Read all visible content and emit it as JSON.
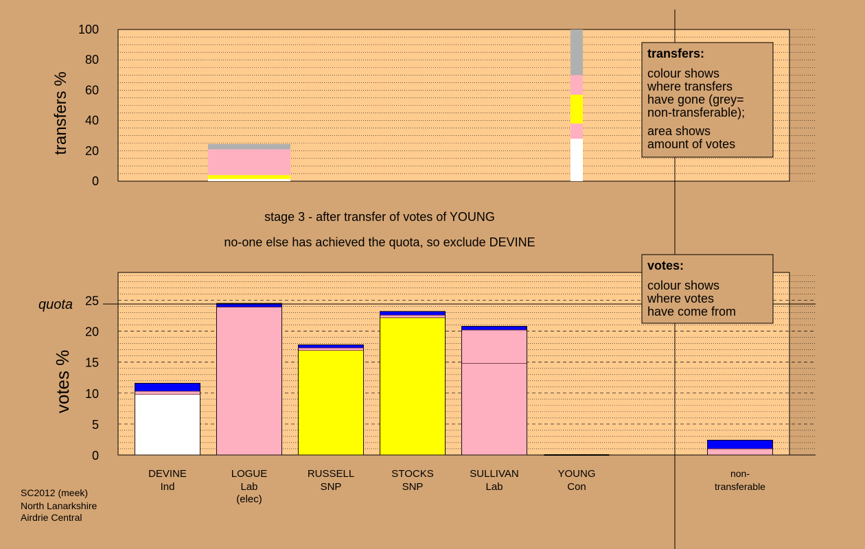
{
  "colors": {
    "background": "#d4a574",
    "plot_bg": "#ffcc90",
    "box_bg": "#d4a574",
    "white": "#ffffff",
    "pink": "#ffb0c0",
    "yellow": "#ffff00",
    "blue": "#0000ff",
    "grey": "#b0b0b0",
    "dark": "#000000"
  },
  "stage_text": {
    "line1": "stage 3 - after transfer of votes of YOUNG",
    "line2": "no-one else has achieved the quota, so exclude DEVINE"
  },
  "footer": {
    "line1": "SC2012 (meek)",
    "line2": "North Lanarkshire",
    "line3": "Airdrie Central"
  },
  "transfers_box": {
    "title": "transfers:",
    "body1": [
      "colour shows",
      "where transfers",
      "have gone (grey=",
      "non-transferable);"
    ],
    "body2": [
      "area shows",
      "amount of votes"
    ]
  },
  "votes_box": {
    "title": "votes:",
    "body": [
      "colour shows",
      "where votes",
      "have come from"
    ]
  },
  "quota_label": "quota",
  "chart_data": [
    {
      "type": "bar",
      "ylabel": "transfers %",
      "ylim": [
        0,
        100
      ],
      "yticks": [
        0,
        20,
        40,
        60,
        80,
        100
      ],
      "grid": "dotted",
      "bars": [
        {
          "position": "LOGUE",
          "segments": [
            {
              "color": "white",
              "from": 0,
              "to": 1.5
            },
            {
              "color": "yellow",
              "from": 1.5,
              "to": 4
            },
            {
              "color": "pink",
              "from": 4,
              "to": 21
            },
            {
              "color": "grey",
              "from": 21,
              "to": 24.5
            }
          ]
        },
        {
          "position": "YOUNG",
          "segments": [
            {
              "color": "white",
              "from": 0,
              "to": 28
            },
            {
              "color": "pink",
              "from": 28,
              "to": 38
            },
            {
              "color": "yellow",
              "from": 38,
              "to": 57
            },
            {
              "color": "pink",
              "from": 57,
              "to": 70
            },
            {
              "color": "grey",
              "from": 70,
              "to": 100
            }
          ]
        }
      ]
    },
    {
      "type": "bar",
      "ylabel": "votes %",
      "ylim": [
        0,
        29.5
      ],
      "yticks": [
        0,
        5,
        10,
        15,
        20,
        25
      ],
      "quota": 24.4,
      "grid": "dashed",
      "candidates": [
        {
          "name": "DEVINE",
          "party": "Ind",
          "extra": "",
          "segments": [
            {
              "color": "white",
              "from": 0,
              "to": 9.8
            },
            {
              "color": "pink",
              "from": 9.8,
              "to": 10.3
            },
            {
              "color": "blue",
              "from": 10.3,
              "to": 11.6
            }
          ]
        },
        {
          "name": "LOGUE",
          "party": "Lab",
          "extra": "(elec)",
          "segments": [
            {
              "color": "pink",
              "from": 0,
              "to": 23.9
            },
            {
              "color": "blue",
              "from": 23.9,
              "to": 24.5
            }
          ]
        },
        {
          "name": "RUSSELL",
          "party": "SNP",
          "extra": "",
          "segments": [
            {
              "color": "yellow",
              "from": 0,
              "to": 16.9
            },
            {
              "color": "pink",
              "from": 16.9,
              "to": 17.3
            },
            {
              "color": "blue",
              "from": 17.3,
              "to": 17.8
            }
          ]
        },
        {
          "name": "STOCKS",
          "party": "SNP",
          "extra": "",
          "segments": [
            {
              "color": "yellow",
              "from": 0,
              "to": 22.2
            },
            {
              "color": "pink",
              "from": 22.2,
              "to": 22.6
            },
            {
              "color": "blue",
              "from": 22.6,
              "to": 23.2
            }
          ]
        },
        {
          "name": "SULLIVAN",
          "party": "Lab",
          "extra": "",
          "segments": [
            {
              "color": "pink",
              "from": 0,
              "to": 14.8
            },
            {
              "color": "pink",
              "from": 14.8,
              "to": 20.2
            },
            {
              "color": "blue",
              "from": 20.2,
              "to": 20.8
            }
          ]
        },
        {
          "name": "YOUNG",
          "party": "Con",
          "extra": "",
          "segments": []
        },
        {
          "name": "non-",
          "party": "transferable",
          "extra": "",
          "segments": [
            {
              "color": "pink",
              "from": 0,
              "to": 1.0
            },
            {
              "color": "blue",
              "from": 1.0,
              "to": 2.4
            }
          ]
        }
      ]
    }
  ]
}
